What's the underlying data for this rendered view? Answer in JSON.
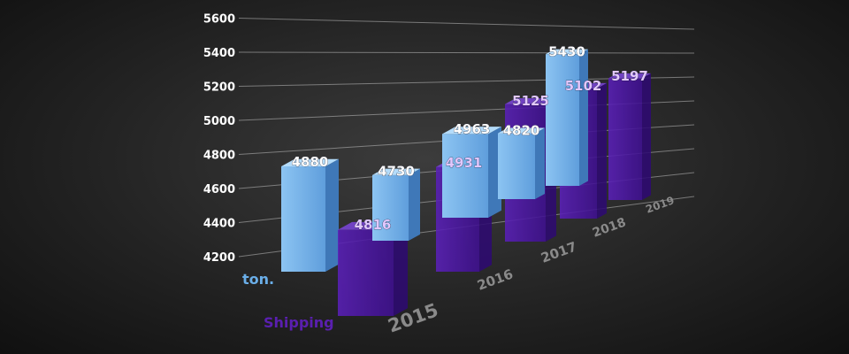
{
  "chart_data": {
    "type": "bar",
    "categories": [
      "2015",
      "2016",
      "2017",
      "2018",
      "2019"
    ],
    "series": [
      {
        "name": "ton.",
        "values": [
          4880,
          4730,
          4963,
          4820,
          5430
        ],
        "color": "#6aaee8"
      },
      {
        "name": "Shipping",
        "values": [
          4816,
          4931,
          5125,
          5102,
          5197
        ],
        "color": "#5a1fb0"
      }
    ],
    "y_ticks": [
      4200,
      4400,
      4600,
      4800,
      5000,
      5200,
      5400,
      5600
    ],
    "ylim": [
      4200,
      5600
    ],
    "grid": true,
    "legend": "left"
  }
}
